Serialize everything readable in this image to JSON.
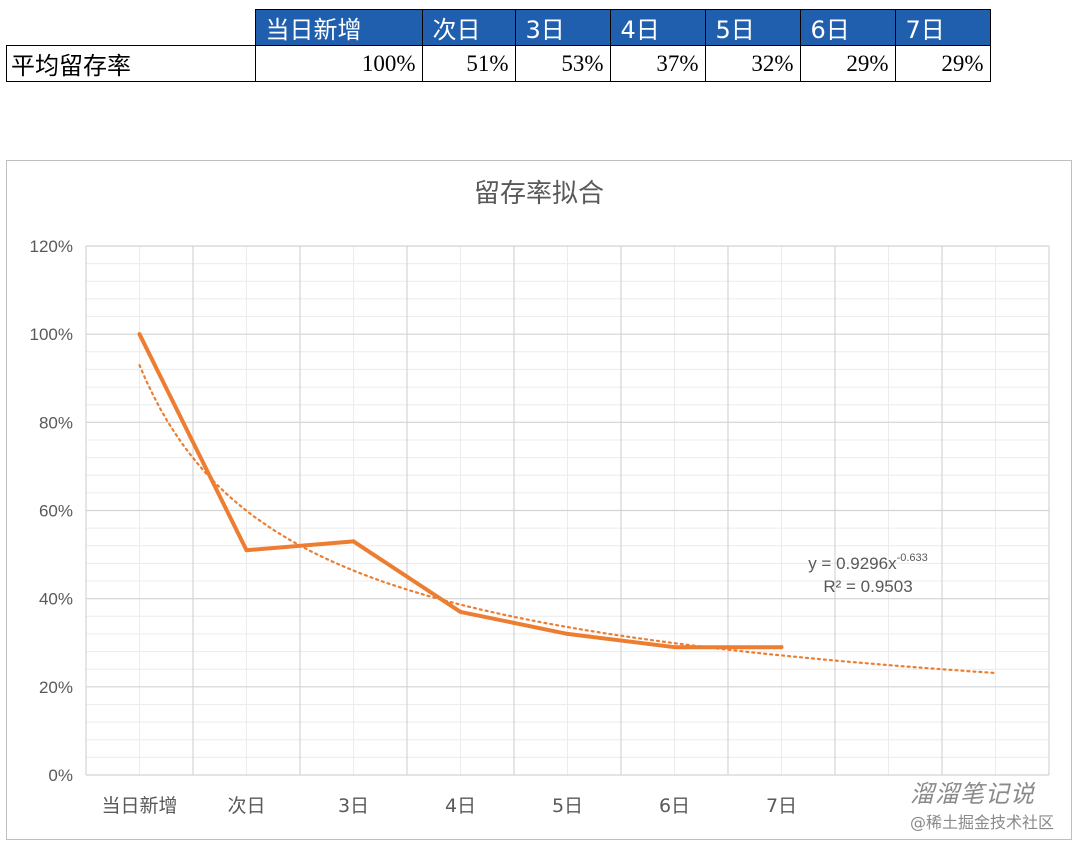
{
  "table": {
    "headers": [
      "当日新增",
      "次日",
      "3日",
      "4日",
      "5日",
      "6日",
      "7日"
    ],
    "row_label": "平均留存率",
    "values": [
      "100%",
      "51%",
      "53%",
      "37%",
      "32%",
      "29%",
      "29%"
    ],
    "header_bg": "#1f5fae"
  },
  "chart_data": {
    "type": "line",
    "title": "留存率拟合",
    "categories": [
      "当日新增",
      "次日",
      "3日",
      "4日",
      "5日",
      "6日",
      "7日"
    ],
    "series": [
      {
        "values": [
          1.0,
          0.51,
          0.53,
          0.37,
          0.32,
          0.29,
          0.29
        ],
        "color": "#ed7d31",
        "style": "solid"
      }
    ],
    "trendline": {
      "type": "power",
      "coefficient": 0.9296,
      "exponent": -0.633,
      "x_extends_to": 9,
      "color": "#ed7d31",
      "style": "dotted",
      "equation_label": "y = 0.9296x",
      "equation_exponent": "-0.633",
      "r2_label": "R² = 0.9503"
    },
    "ylim": [
      0,
      1.2
    ],
    "yticks": [
      "0%",
      "20%",
      "40%",
      "60%",
      "80%",
      "100%",
      "120%"
    ],
    "grid": true
  },
  "watermark": {
    "line1": "溜溜笔记说",
    "line2": "@稀土掘金技术社区"
  }
}
